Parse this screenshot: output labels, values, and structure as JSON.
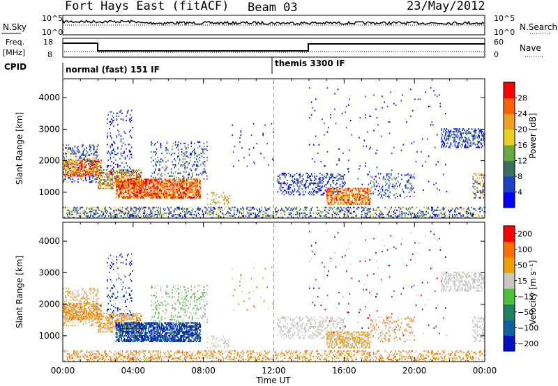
{
  "header": {
    "station": "Fort Hays East (fitACF)",
    "beam": "Beam 03",
    "date": "23/May/2012"
  },
  "noise_panel": {
    "left_label": "N.Sky",
    "right_label": "N.Search",
    "left_ticks": [
      "10^5",
      "10^0"
    ],
    "right_ticks": [
      "10^5",
      "10^0"
    ]
  },
  "freq_panel": {
    "left_label_1": "Freq.",
    "left_label_2": "[MHz]",
    "right_label": "Nave",
    "left_ticks": [
      "18",
      "8"
    ],
    "right_ticks": [
      "60",
      "0"
    ]
  },
  "cpid": {
    "label": "CPID",
    "segments": [
      {
        "start_hour": 0,
        "text": "normal (fast) 151 IF"
      },
      {
        "start_hour": 12,
        "text": "themis 3300 IF"
      }
    ]
  },
  "chart_data": [
    {
      "type": "heatmap",
      "quantity": "Power",
      "ylabel": "Slant Range [km]",
      "xlabel": "Time UT",
      "x_ticks": [
        "00:00",
        "04:00",
        "08:00",
        "12:00",
        "16:00",
        "20:00",
        "00:00"
      ],
      "y_ticks": [
        1000,
        2000,
        3000,
        4000
      ],
      "ylim": [
        180,
        4600
      ],
      "xlim_hours": [
        0,
        24
      ],
      "colorbar": {
        "label": "Power [dB]",
        "ticks": [
          "4",
          "8",
          "12",
          "16",
          "20",
          "24",
          "28"
        ],
        "range": [
          0,
          30
        ],
        "colors": [
          "#0000ff",
          "#2040c8",
          "#3a7060",
          "#6aaa40",
          "#e8d020",
          "#f0a020",
          "#ff6000",
          "#ff0000"
        ]
      }
    },
    {
      "type": "heatmap",
      "quantity": "Velocity",
      "ylabel": "Slant Range [km]",
      "xlabel": "Time UT",
      "x_ticks": [
        "00:00",
        "04:00",
        "08:00",
        "12:00",
        "16:00",
        "20:00",
        "00:00"
      ],
      "y_ticks": [
        1000,
        2000,
        3000,
        4000
      ],
      "ylim": [
        180,
        4600
      ],
      "xlim_hours": [
        0,
        24
      ],
      "colorbar": {
        "label": "Velocity [m s⁻¹]",
        "ticks": [
          "200",
          "100",
          "50",
          "15",
          "−15",
          "−50",
          "−100",
          "−200"
        ],
        "colors": [
          "#0010c0",
          "#1060a0",
          "#208060",
          "#50c040",
          "#c8c8c0",
          "#f0a000",
          "#ff7000",
          "#ff0000"
        ]
      }
    }
  ]
}
